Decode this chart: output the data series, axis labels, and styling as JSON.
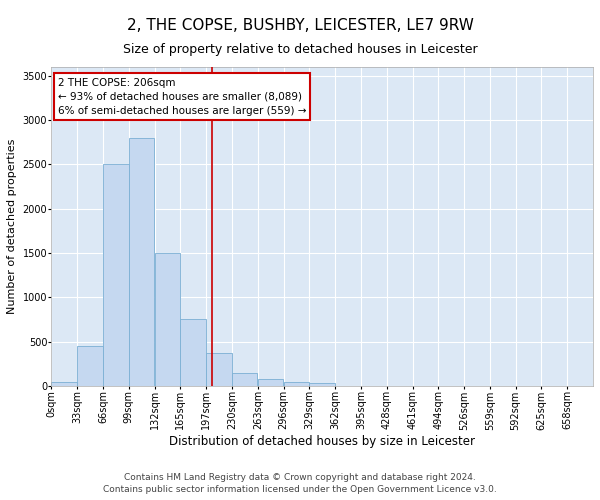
{
  "title": "2, THE COPSE, BUSHBY, LEICESTER, LE7 9RW",
  "subtitle": "Size of property relative to detached houses in Leicester",
  "xlabel": "Distribution of detached houses by size in Leicester",
  "ylabel": "Number of detached properties",
  "footer_line1": "Contains HM Land Registry data © Crown copyright and database right 2024.",
  "footer_line2": "Contains public sector information licensed under the Open Government Licence v3.0.",
  "bar_labels": [
    "0sqm",
    "33sqm",
    "66sqm",
    "99sqm",
    "132sqm",
    "165sqm",
    "197sqm",
    "230sqm",
    "263sqm",
    "296sqm",
    "329sqm",
    "362sqm",
    "395sqm",
    "428sqm",
    "461sqm",
    "494sqm",
    "526sqm",
    "559sqm",
    "592sqm",
    "625sqm",
    "658sqm"
  ],
  "bar_values": [
    50,
    450,
    2500,
    2800,
    1500,
    750,
    375,
    150,
    80,
    50,
    30,
    0,
    0,
    0,
    0,
    0,
    0,
    0,
    0,
    0,
    0
  ],
  "bar_color": "#c5d8f0",
  "bar_edge_color": "#7bafd4",
  "annotation_text": "2 THE COPSE: 206sqm\n← 93% of detached houses are smaller (8,089)\n6% of semi-detached houses are larger (559) →",
  "annotation_box_color": "#ffffff",
  "annotation_box_edge_color": "#cc0000",
  "vline_x": 206,
  "vline_color": "#cc0000",
  "ylim": [
    0,
    3600
  ],
  "bin_width": 33,
  "fig_bg_color": "#ffffff",
  "plot_bg_color": "#dce8f5",
  "grid_color": "#ffffff",
  "title_fontsize": 11,
  "subtitle_fontsize": 9,
  "xlabel_fontsize": 8.5,
  "ylabel_fontsize": 8,
  "tick_fontsize": 7,
  "footer_fontsize": 6.5
}
